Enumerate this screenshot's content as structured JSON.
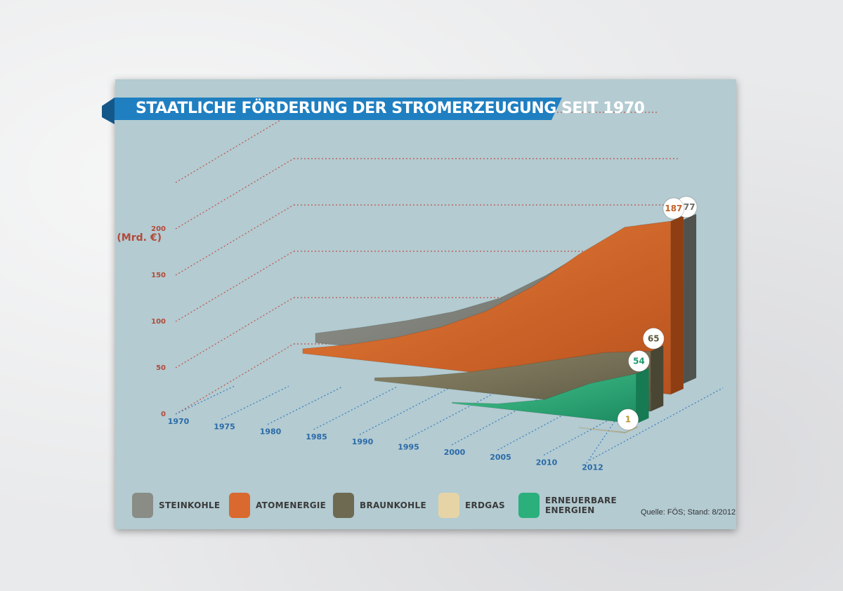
{
  "chart_data": {
    "type": "area",
    "title": "STAATLICHE FÖRDERUNG DER STROMERZEUGUNG SEIT 1970",
    "ylabel": "(Mrd. €)",
    "ylim": [
      0,
      250
    ],
    "yticks": [
      "0",
      "50",
      "100",
      "150",
      "200"
    ],
    "x": [
      "1970",
      "1975",
      "1980",
      "1985",
      "1990",
      "1995",
      "2000",
      "2005",
      "2010",
      "2012"
    ],
    "series": [
      {
        "name": "STEINKOHLE",
        "color": "#7d8078",
        "values": [
          null,
          10,
          22,
          35,
          50,
          70,
          100,
          135,
          165,
          177
        ],
        "end_label": "177"
      },
      {
        "name": "ATOMENERGIE",
        "color": "#d5662a",
        "values": [
          null,
          5,
          15,
          28,
          45,
          68,
          100,
          140,
          175,
          187
        ],
        "end_label": "187"
      },
      {
        "name": "BRAUNKOHLE",
        "color": "#7a7356",
        "values": [
          null,
          null,
          null,
          3,
          10,
          20,
          32,
          45,
          58,
          65
        ],
        "end_label": "65"
      },
      {
        "name": "ERDGAS",
        "color": "#e3cf9e",
        "values": [
          null,
          null,
          null,
          null,
          null,
          null,
          null,
          null,
          0.5,
          1
        ],
        "end_label": "1"
      },
      {
        "name": "ERNEUERBARE ENERGIEN",
        "color": "#2fa97a",
        "values": [
          null,
          null,
          null,
          null,
          null,
          1,
          5,
          15,
          38,
          54
        ],
        "end_label": "54"
      }
    ],
    "grid": true,
    "legend": "bottom"
  },
  "legend": {
    "items": [
      {
        "label": "STEINKOHLE",
        "color": "#8a8c86"
      },
      {
        "label": "ATOMENERGIE",
        "color": "#d9692e"
      },
      {
        "label": "BRAUNKOHLE",
        "color": "#6e6a52"
      },
      {
        "label": "ERDGAS",
        "color": "#e6d4a6"
      },
      {
        "label": "ERNEUERBARE\nENERGIEN",
        "color": "#2bb07c"
      }
    ]
  },
  "source": "Quelle: FÖS; Stand: 8/2012",
  "colors": {
    "banner": "#1f7fc1",
    "card": "#b3cbd1",
    "axis_red": "#b24a3a",
    "axis_blue": "#2b6aa8"
  }
}
